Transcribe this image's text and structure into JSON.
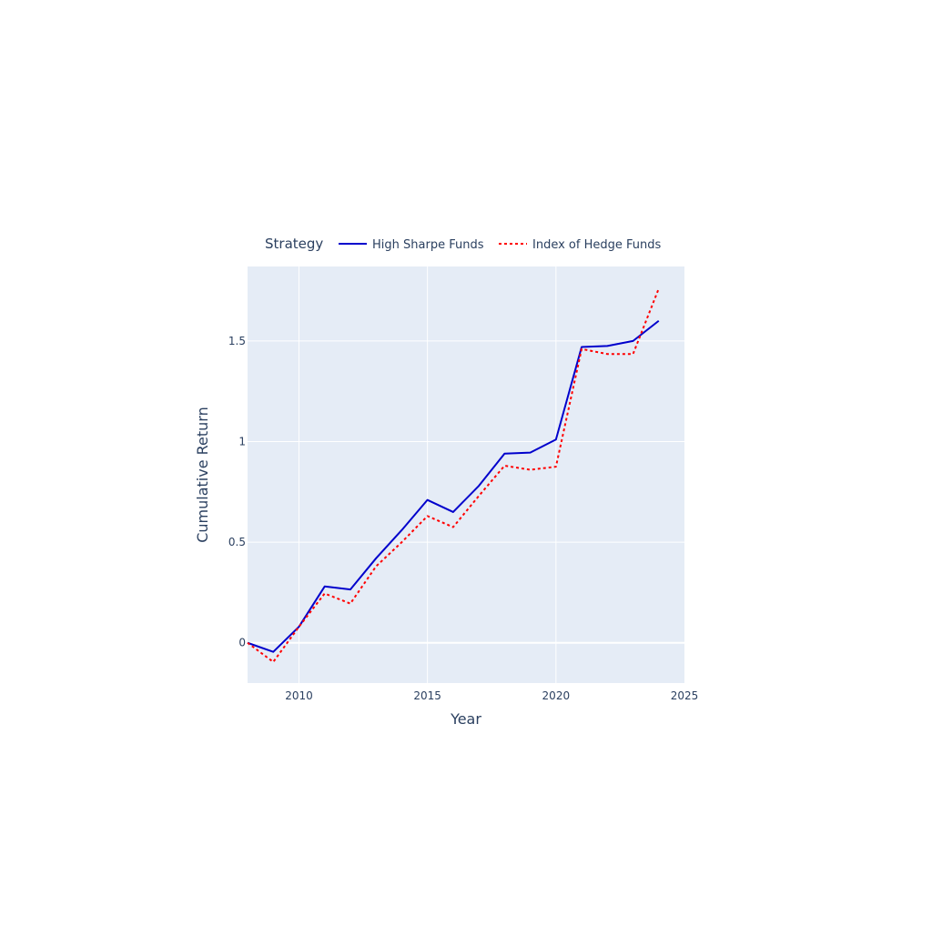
{
  "chart_data": {
    "type": "line",
    "title": "",
    "xlabel": "Year",
    "ylabel": "Cumulative Return",
    "legend": {
      "title": "Strategy",
      "placement": "top"
    },
    "xlim": [
      2008,
      2025
    ],
    "ylim": [
      -0.2,
      1.87
    ],
    "xticks": [
      2010,
      2015,
      2020,
      2025
    ],
    "yticks": [
      0,
      0.5,
      1,
      1.5
    ],
    "ytick_labels": [
      "0",
      "0.5",
      "1",
      "1.5"
    ],
    "grid": true,
    "x": [
      2008,
      2009,
      2010,
      2011,
      2012,
      2013,
      2014,
      2015,
      2016,
      2017,
      2018,
      2019,
      2020,
      2021,
      2022,
      2023,
      2024
    ],
    "series": [
      {
        "name": "High Sharpe Funds",
        "color": "#0000cc",
        "dash": "solid",
        "values": [
          0.0,
          -0.045,
          0.08,
          0.28,
          0.265,
          0.42,
          0.56,
          0.71,
          0.65,
          0.78,
          0.94,
          0.945,
          1.01,
          1.47,
          1.475,
          1.5,
          1.6
        ]
      },
      {
        "name": "Index of Hedge Funds",
        "color": "#ff0000",
        "dash": "dot",
        "values": [
          0.0,
          -0.095,
          0.08,
          0.245,
          0.195,
          0.38,
          0.5,
          0.63,
          0.575,
          0.73,
          0.88,
          0.86,
          0.875,
          1.46,
          1.435,
          1.435,
          1.76
        ]
      }
    ]
  }
}
